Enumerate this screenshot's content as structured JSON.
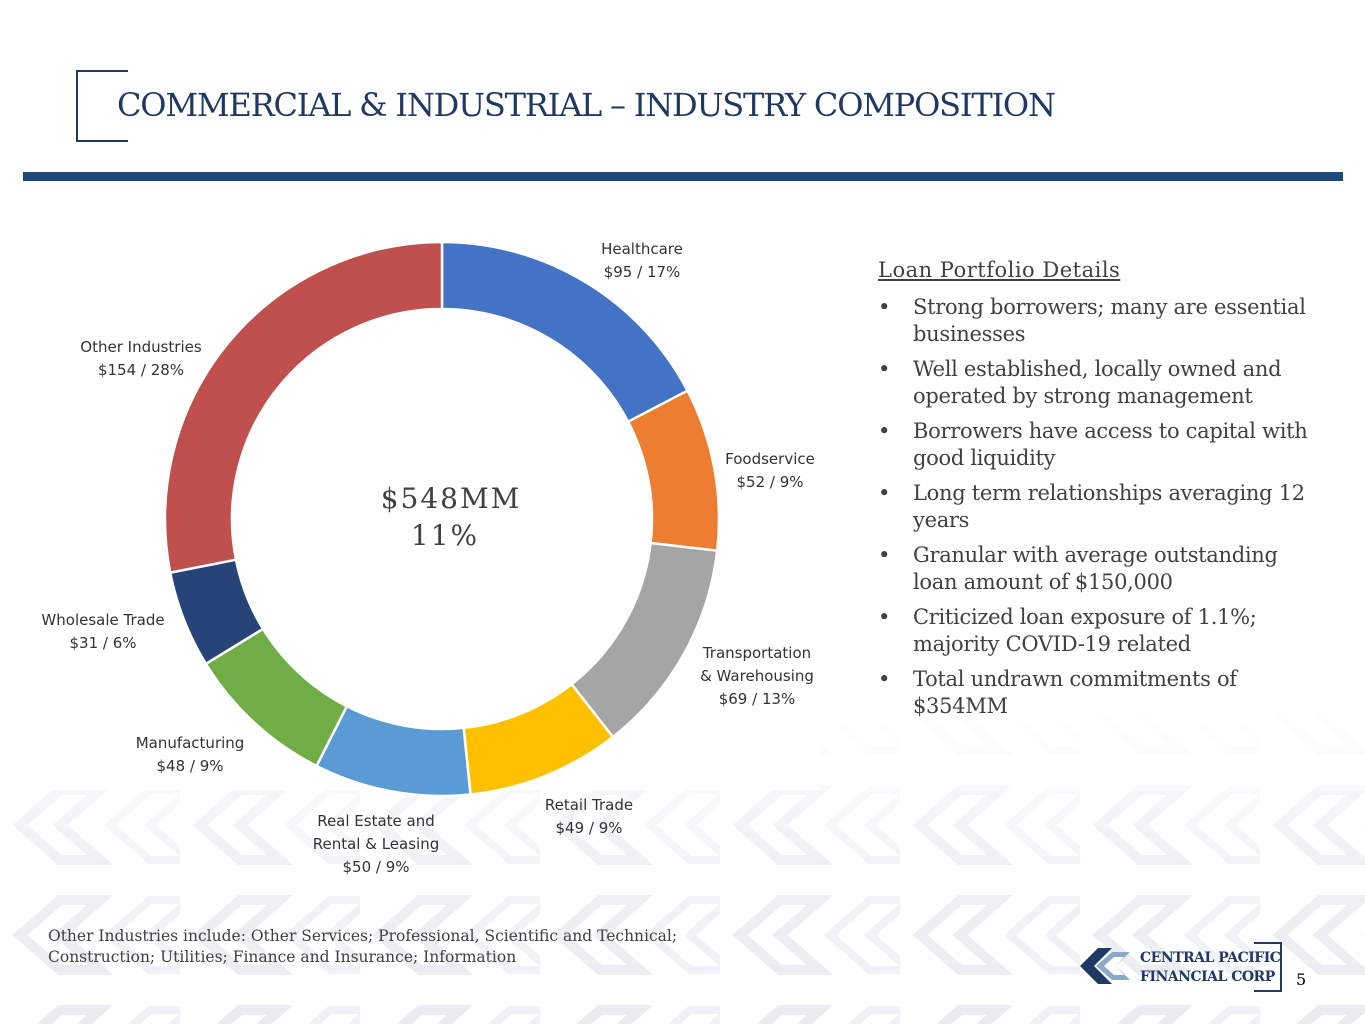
{
  "header": {
    "title": "COMMERCIAL & INDUSTRIAL – INDUSTRY COMPOSITION"
  },
  "chart_data": {
    "type": "pie",
    "style": "donut",
    "center_label": [
      "$548MM",
      "11%"
    ],
    "categories": [
      "Healthcare",
      "Foodservice",
      "Transportation & Warehousing",
      "Retail Trade",
      "Real Estate and Rental & Leasing",
      "Manufacturing",
      "Wholesale Trade",
      "Other Industries"
    ],
    "values": [
      95,
      52,
      69,
      49,
      50,
      48,
      31,
      154
    ],
    "percents": [
      17,
      9,
      13,
      9,
      9,
      9,
      6,
      28
    ],
    "colors": [
      "#4472c4",
      "#ed7d31",
      "#a5a5a5",
      "#ffc000",
      "#5b9bd5",
      "#70ad47",
      "#264478",
      "#c0504d"
    ],
    "labels": [
      {
        "lines": [
          "Healthcare",
          "$95 / 17%"
        ]
      },
      {
        "lines": [
          "Foodservice",
          "$52 / 9%"
        ]
      },
      {
        "lines": [
          "Transportation",
          "& Warehousing",
          "$69 / 13%"
        ]
      },
      {
        "lines": [
          "Retail Trade",
          "$49 / 9%"
        ]
      },
      {
        "lines": [
          "Real Estate and",
          "Rental & Leasing",
          "$50 / 9%"
        ]
      },
      {
        "lines": [
          "Manufacturing",
          "$48 / 9%"
        ]
      },
      {
        "lines": [
          "Wholesale Trade",
          "$31 / 6%"
        ]
      },
      {
        "lines": [
          "Other Industries",
          "$154 / 28%"
        ]
      }
    ]
  },
  "details": {
    "title": "Loan Portfolio Details",
    "bullet_char": "•",
    "items": [
      "Strong borrowers; many are essential businesses",
      "Well established, locally owned and operated by strong management",
      "Borrowers have access to capital with good liquidity",
      "Long term relationships averaging 12 years",
      "Granular with average outstanding loan amount of $150,000",
      "Criticized loan exposure of 1.1%; majority COVID-19 related",
      "Total undrawn commitments of $354MM"
    ]
  },
  "footnote": {
    "line1": "Other Industries include: Other Services; Professional, Scientific and Technical;",
    "line2": "Construction; Utilities; Finance and Insurance; Information"
  },
  "logo": {
    "line1": "CENTRAL PACIFIC",
    "line2": "FINANCIAL CORP"
  },
  "page_number": "5"
}
